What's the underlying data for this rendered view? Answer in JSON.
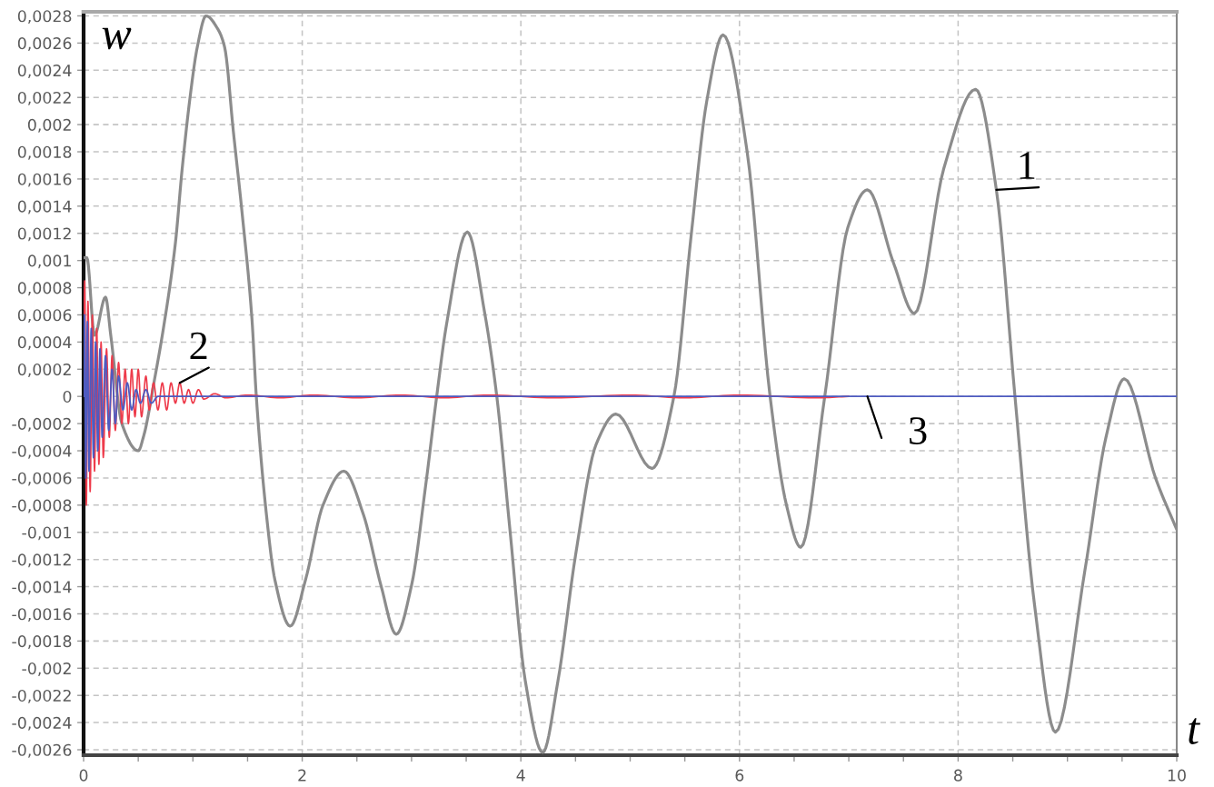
{
  "chart_data": {
    "type": "line",
    "xlabel": "t",
    "ylabel": "w",
    "xlim": [
      0,
      10
    ],
    "ylim": [
      -0.00264,
      0.00283
    ],
    "xticks": [
      0,
      {
        "value": 0.5,
        "label": null
      },
      {
        "value": 1,
        "label": null
      },
      {
        "value": 1.5,
        "label": null
      },
      2,
      {
        "value": 2.5,
        "label": null
      },
      {
        "value": 3,
        "label": null
      },
      {
        "value": 3.5,
        "label": null
      },
      4,
      {
        "value": 4.5,
        "label": null
      },
      {
        "value": 5,
        "label": null
      },
      {
        "value": 5.5,
        "label": null
      },
      6,
      {
        "value": 6.5,
        "label": null
      },
      {
        "value": 7,
        "label": null
      },
      {
        "value": 7.5,
        "label": null
      },
      8,
      {
        "value": 8.5,
        "label": null
      },
      {
        "value": 9,
        "label": null
      },
      {
        "value": 9.5,
        "label": null
      },
      10
    ],
    "yticks": [
      {
        "value": -0.0026,
        "label": "-0,0026"
      },
      {
        "value": -0.0024,
        "label": "-0,0024"
      },
      {
        "value": -0.0022,
        "label": "-0,0022"
      },
      {
        "value": -0.002,
        "label": "-0,002"
      },
      {
        "value": -0.0018,
        "label": "-0,0018"
      },
      {
        "value": -0.0016,
        "label": "-0,0016"
      },
      {
        "value": -0.0014,
        "label": "-0,0014"
      },
      {
        "value": -0.0012,
        "label": "-0,0012"
      },
      {
        "value": -0.001,
        "label": "-0,001"
      },
      {
        "value": -0.0008,
        "label": "-0,0008"
      },
      {
        "value": -0.0006,
        "label": "-0,0006"
      },
      {
        "value": -0.0004,
        "label": "-0,0004"
      },
      {
        "value": -0.0002,
        "label": "-0,0002"
      },
      0,
      {
        "value": 0.0002,
        "label": "0,0002"
      },
      {
        "value": 0.0004,
        "label": "0,0004"
      },
      {
        "value": 0.0006,
        "label": "0,0006"
      },
      {
        "value": 0.0008,
        "label": "0,0008"
      },
      {
        "value": 0.001,
        "label": "0,001"
      },
      {
        "value": 0.0012,
        "label": "0,0012"
      },
      {
        "value": 0.0014,
        "label": "0,0014"
      },
      {
        "value": 0.0016,
        "label": "0,0016"
      },
      {
        "value": 0.0018,
        "label": "0,0018"
      },
      {
        "value": 0.002,
        "label": "0,002"
      },
      {
        "value": 0.0022,
        "label": "0,0022"
      },
      {
        "value": 0.0024,
        "label": "0,0024"
      },
      {
        "value": 0.0026,
        "label": "0,0026"
      },
      {
        "value": 0.0028,
        "label": "0,0028"
      }
    ],
    "grid": true,
    "series": [
      {
        "color": "#8c8c8c",
        "x": [
          0,
          0.03,
          0.1,
          0.2,
          0.25,
          0.35,
          0.5,
          0.55,
          0.65,
          0.73,
          0.84,
          0.9,
          0.98,
          1.04,
          1.12,
          1.23,
          1.29,
          1.37,
          1.45,
          1.54,
          1.58,
          1.67,
          1.75,
          1.89,
          2.03,
          2.19,
          2.38,
          2.56,
          2.72,
          2.86,
          3.0,
          3.13,
          3.23,
          3.32,
          3.51,
          3.67,
          3.78,
          3.9,
          4.04,
          4.2,
          4.34,
          4.5,
          4.69,
          4.87,
          5.2,
          5.4,
          5.56,
          5.7,
          5.85,
          6.07,
          6.28,
          6.43,
          6.56,
          6.78,
          6.99,
          7.17,
          7.41,
          7.6,
          7.87,
          8.16,
          8.35,
          8.52,
          8.7,
          8.89,
          9.16,
          9.35,
          9.52,
          9.81,
          10
        ],
        "values": [
          0.00102,
          0.00102,
          0.00045,
          0.00073,
          0.00044,
          -0.0002,
          -0.0004,
          -0.00029,
          0.00013,
          0.0005,
          0.00113,
          0.00166,
          0.00224,
          0.00257,
          0.0028,
          0.0027,
          0.00257,
          0.00195,
          0.00135,
          0.00057,
          0,
          -0.00085,
          -0.00135,
          -0.00169,
          -0.00135,
          -0.0008,
          -0.00055,
          -0.00087,
          -0.00139,
          -0.00175,
          -0.00139,
          -0.00065,
          0,
          0.00053,
          0.00121,
          0.00061,
          0,
          -0.00098,
          -0.00209,
          -0.00262,
          -0.00209,
          -0.00117,
          -0.00035,
          -0.00013,
          -0.00053,
          0,
          0.0012,
          0.00217,
          0.00266,
          0.0018,
          0,
          -0.0008,
          -0.00111,
          0,
          0.00124,
          0.00152,
          0.00098,
          0.00061,
          0.00168,
          0.00226,
          0.00152,
          0,
          -0.00154,
          -0.00247,
          -0.00128,
          -0.00031,
          0.00013,
          -0.00061,
          -0.00098
        ]
      },
      {
        "color": "#ee3b4b",
        "x": [
          0,
          0.01,
          0.025,
          0.04,
          0.06,
          0.08,
          0.1,
          0.12,
          0.14,
          0.16,
          0.18,
          0.21,
          0.235,
          0.26,
          0.29,
          0.32,
          0.35,
          0.38,
          0.41,
          0.44,
          0.47,
          0.5,
          0.53,
          0.57,
          0.6,
          0.64,
          0.68,
          0.72,
          0.76,
          0.8,
          0.84,
          0.88,
          0.92,
          0.96,
          1.0,
          1.05,
          1.1,
          1.2,
          1.3,
          1.5,
          1.8,
          2.1,
          2.5,
          2.9,
          3.3,
          3.7,
          4.3,
          5.0,
          5.5,
          6.0,
          6.7,
          7.0
        ],
        "values": [
          0,
          0.00085,
          -0.0008,
          0.0007,
          -0.0007,
          0.0006,
          -0.00055,
          0.0005,
          -0.0005,
          0.0004,
          -0.00045,
          0.00035,
          -0.0003,
          0.0003,
          -0.00025,
          0.00025,
          -0.0002,
          0.0002,
          -0.0002,
          0.0002,
          -0.00015,
          0.0002,
          -0.00015,
          0.00015,
          -0.0001,
          0.0001,
          -0.0001,
          0.0001,
          -0.0001,
          0.0001,
          -5e-05,
          0.0001,
          -5e-05,
          5e-05,
          -5e-05,
          5e-05,
          -2e-05,
          2e-05,
          -1e-05,
          1e-05,
          -1e-05,
          1e-05,
          -1e-05,
          1e-05,
          -1e-05,
          1e-05,
          -1e-05,
          1e-05,
          -1e-05,
          1e-05,
          -1e-05,
          0
        ]
      },
      {
        "color": "#4e5bc0",
        "x": [
          0,
          0.008,
          0.02,
          0.035,
          0.05,
          0.07,
          0.09,
          0.11,
          0.13,
          0.15,
          0.17,
          0.2,
          0.23,
          0.26,
          0.29,
          0.32,
          0.36,
          0.4,
          0.44,
          0.48,
          0.52,
          0.57,
          0.62,
          0.68,
          0.75,
          10
        ],
        "values": [
          0,
          0.0006,
          -0.0006,
          0.00055,
          -0.00055,
          0.0005,
          -0.00045,
          0.0004,
          -0.0004,
          0.00035,
          -0.0003,
          0.0003,
          -0.00025,
          0.0002,
          -0.0002,
          0.00015,
          -0.0001,
          0.0001,
          -0.0001,
          5e-05,
          -5e-05,
          5e-05,
          -5e-05,
          0,
          0,
          0
        ]
      }
    ],
    "annotations": [
      {
        "text": "1",
        "x": 8.35,
        "y": 0.00152
      },
      {
        "text": "2",
        "x": 0.88,
        "y": 0.0001
      },
      {
        "text": "3",
        "x": 7.17,
        "y": 0
      }
    ]
  }
}
